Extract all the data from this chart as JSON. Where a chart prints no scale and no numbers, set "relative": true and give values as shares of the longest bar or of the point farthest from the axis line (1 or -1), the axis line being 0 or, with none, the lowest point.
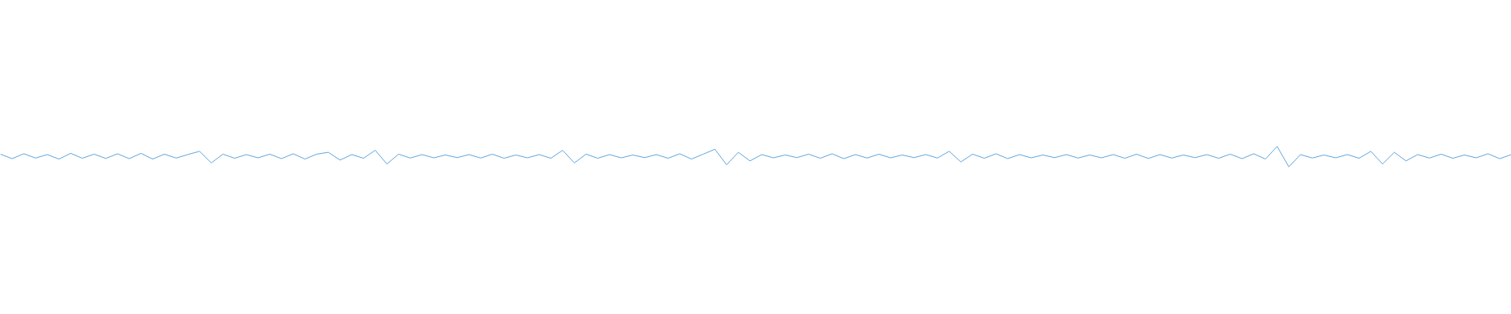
{
  "chart_data": {
    "type": "line",
    "relative": true,
    "grid": false,
    "categories": [
      null,
      null,
      null,
      null,
      null,
      null,
      null,
      null,
      null,
      null,
      null,
      null,
      null,
      null,
      null,
      null,
      null,
      null,
      null,
      null,
      null,
      null,
      null,
      null,
      null,
      null,
      null,
      null,
      null,
      null,
      null,
      null,
      null,
      null,
      null,
      null,
      null,
      null,
      null,
      null,
      null,
      null,
      null,
      null,
      null,
      null,
      null,
      null,
      null,
      null,
      null,
      null,
      null,
      null,
      null,
      null,
      null,
      null,
      null,
      null,
      null,
      null,
      null,
      null,
      null,
      null,
      null,
      null,
      null,
      null,
      null,
      null,
      null,
      null,
      null,
      null,
      null,
      null,
      null,
      null,
      null,
      null,
      null,
      null,
      null,
      null,
      null,
      null,
      null,
      null,
      null,
      null,
      null,
      null,
      null,
      null,
      null,
      null,
      null,
      null,
      null,
      null,
      null,
      null,
      null,
      null,
      null,
      null,
      null,
      null,
      null,
      null,
      null,
      null,
      null,
      null,
      null,
      null,
      null,
      null,
      null,
      null,
      null,
      null,
      null,
      null,
      null,
      null,
      null,
      null
    ],
    "series": [
      {
        "color": "#5ba3dc",
        "values": [
          0.62,
          0.4,
          0.64,
          0.43,
          0.6,
          0.38,
          0.66,
          0.42,
          0.62,
          0.41,
          0.64,
          0.4,
          0.66,
          0.38,
          0.62,
          0.43,
          0.6,
          0.76,
          0.19,
          0.62,
          0.42,
          0.6,
          0.44,
          0.62,
          0.4,
          0.64,
          0.38,
          0.62,
          0.71,
          0.33,
          0.6,
          0.42,
          0.81,
          0.14,
          0.62,
          0.43,
          0.6,
          0.44,
          0.58,
          0.45,
          0.6,
          0.43,
          0.62,
          0.42,
          0.58,
          0.44,
          0.6,
          0.42,
          0.81,
          0.19,
          0.62,
          0.42,
          0.6,
          0.44,
          0.58,
          0.45,
          0.6,
          0.42,
          0.64,
          0.38,
          0.62,
          0.86,
          0.1,
          0.71,
          0.29,
          0.6,
          0.44,
          0.58,
          0.45,
          0.62,
          0.42,
          0.64,
          0.4,
          0.6,
          0.43,
          0.62,
          0.44,
          0.58,
          0.45,
          0.6,
          0.43,
          0.76,
          0.24,
          0.62,
          0.42,
          0.64,
          0.4,
          0.6,
          0.44,
          0.58,
          0.45,
          0.6,
          0.43,
          0.58,
          0.44,
          0.6,
          0.42,
          0.62,
          0.41,
          0.6,
          0.43,
          0.58,
          0.45,
          0.6,
          0.42,
          0.62,
          0.4,
          0.64,
          0.38,
          1.0,
          0.0,
          0.6,
          0.43,
          0.58,
          0.44,
          0.6,
          0.42,
          0.76,
          0.14,
          0.71,
          0.29,
          0.6,
          0.43,
          0.62,
          0.42,
          0.58,
          0.44,
          0.64,
          0.4,
          0.6
        ]
      }
    ]
  }
}
